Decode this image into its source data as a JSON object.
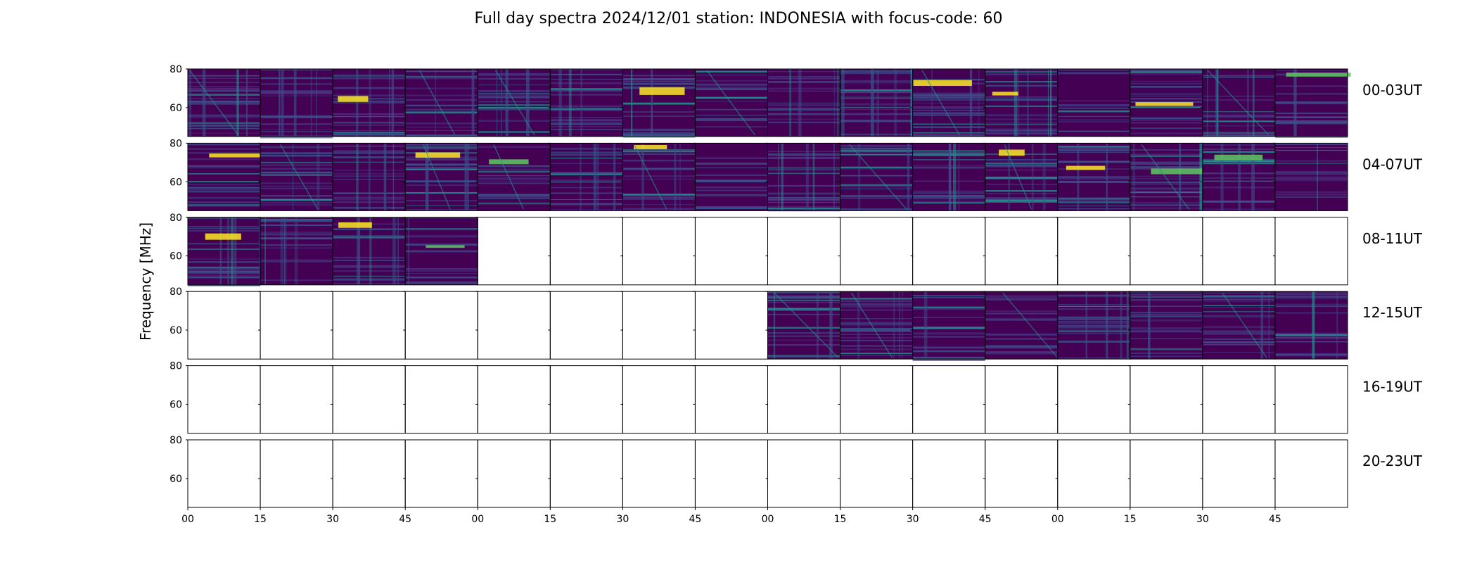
{
  "chart_data": {
    "type": "heatmap",
    "title": "Full day spectra 2024/12/01 station: INDONESIA with focus-code: 60",
    "ylabel": "Frequency [MHz]",
    "y_ticks": [
      "60",
      "80"
    ],
    "ylim": [
      45,
      80
    ],
    "x_tick_labels": [
      "00",
      "15",
      "30",
      "45",
      "00",
      "15",
      "30",
      "45",
      "00",
      "15",
      "30",
      "45",
      "00",
      "15",
      "30",
      "45"
    ],
    "panels_per_row": 16,
    "row_labels": [
      "00-03UT",
      "04-07UT",
      "08-11UT",
      "12-15UT",
      "16-19UT",
      "20-23UT"
    ],
    "data_panels": [
      [
        1,
        1,
        1,
        1,
        1,
        1,
        1,
        1,
        1,
        1,
        1,
        1,
        1,
        1,
        1,
        1
      ],
      [
        1,
        1,
        1,
        1,
        1,
        1,
        1,
        1,
        1,
        1,
        1,
        1,
        1,
        1,
        1,
        1
      ],
      [
        1,
        1,
        1,
        1,
        0,
        0,
        0,
        0,
        0,
        0,
        0,
        0,
        0,
        0,
        0,
        0
      ],
      [
        0,
        0,
        0,
        0,
        0,
        0,
        0,
        0,
        1,
        1,
        1,
        1,
        1,
        1,
        1,
        1
      ],
      [
        0,
        0,
        0,
        0,
        0,
        0,
        0,
        0,
        0,
        0,
        0,
        0,
        0,
        0,
        0,
        0
      ],
      [
        0,
        0,
        0,
        0,
        0,
        0,
        0,
        0,
        0,
        0,
        0,
        0,
        0,
        0,
        0,
        0
      ]
    ],
    "colormap": [
      "#440154",
      "#3b528b",
      "#21918c",
      "#5ec962",
      "#fde725"
    ],
    "grid": false
  }
}
